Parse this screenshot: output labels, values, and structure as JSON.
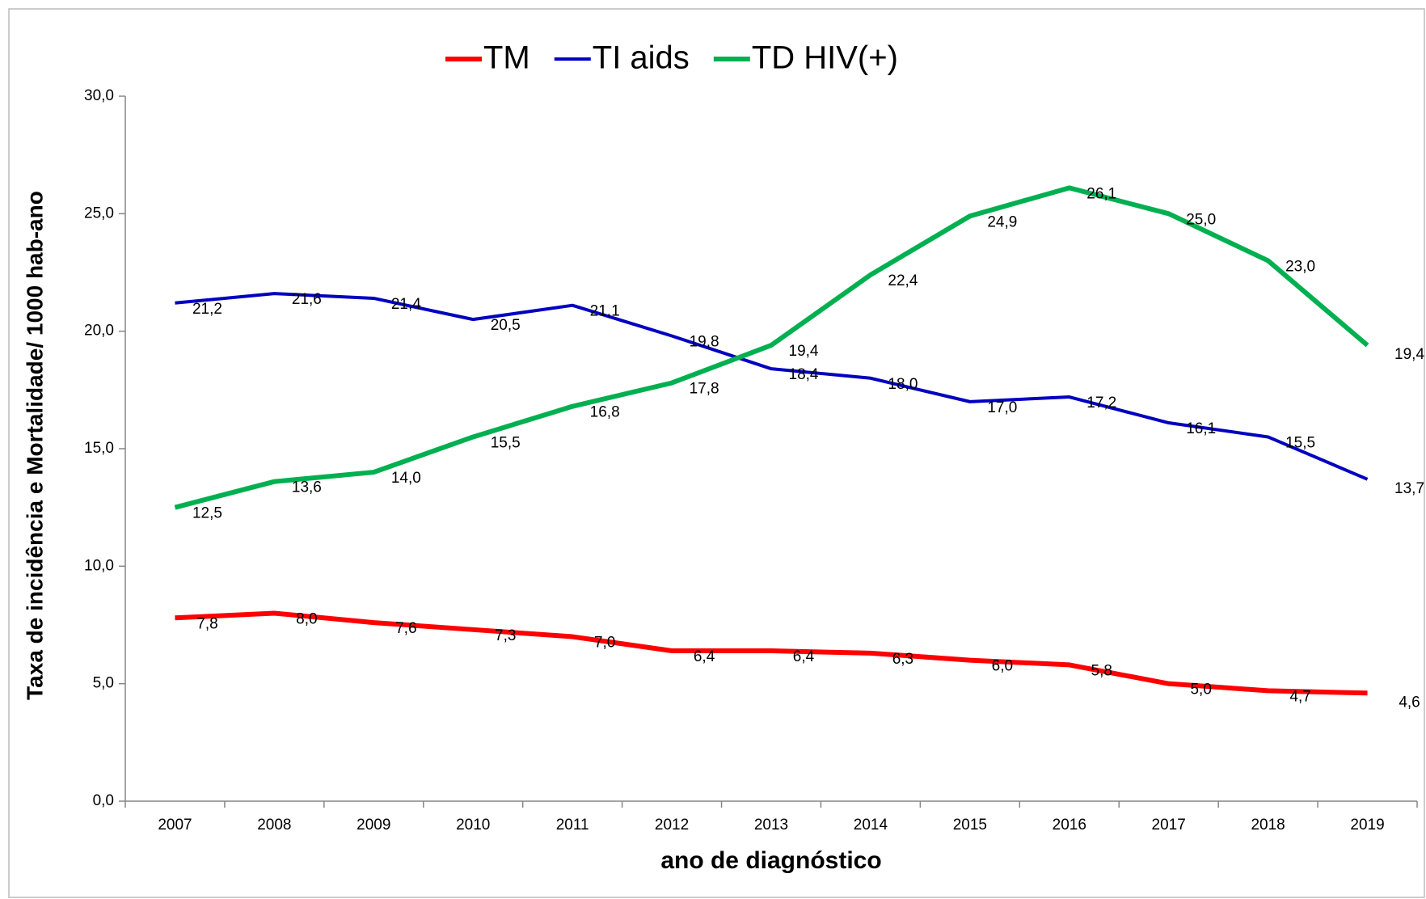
{
  "chart_data": {
    "type": "line",
    "x_label": "ano de diagnóstico",
    "y_label": "Taxa de incidência e Mortalidade/ 1000 hab-ano",
    "categories": [
      "2007",
      "2008",
      "2009",
      "2010",
      "2011",
      "2012",
      "2013",
      "2014",
      "2015",
      "2016",
      "2017",
      "2018",
      "2019"
    ],
    "series": [
      {
        "name": "TM",
        "color": "#ff0000",
        "width": 6,
        "values": [
          7.8,
          8.0,
          7.6,
          7.3,
          7.0,
          6.4,
          6.4,
          6.3,
          6.0,
          5.8,
          5.0,
          4.7,
          4.6
        ],
        "value_labels": [
          "7,8",
          "8,0",
          "7,6",
          "7,3",
          "7,0",
          "6,4",
          "6,4",
          "6,3",
          "6,0",
          "5,8",
          "5,0",
          "4,7",
          "4,6"
        ]
      },
      {
        "name": "TI aids",
        "color": "#0000c0",
        "width": 4,
        "values": [
          21.2,
          21.6,
          21.4,
          20.5,
          21.1,
          19.8,
          18.4,
          18.0,
          17.0,
          17.2,
          16.1,
          15.5,
          13.7
        ],
        "value_labels": [
          "21,2",
          "21,6",
          "21,4",
          "20,5",
          "21,1",
          "19,8",
          "18,4",
          "18,0",
          "17,0",
          "17,2",
          "16,1",
          "15,5",
          "13,7"
        ]
      },
      {
        "name": "TD HIV(+)",
        "color": "#00b050",
        "width": 6,
        "values": [
          12.5,
          13.6,
          14.0,
          15.5,
          16.8,
          17.8,
          19.4,
          22.4,
          24.9,
          26.1,
          25.0,
          23.0,
          19.4
        ],
        "value_labels": [
          "12,5",
          "13,6",
          "14,0",
          "15,5",
          "16,8",
          "17,8",
          "19,4",
          "22,4",
          "24,9",
          "26,1",
          "25,0",
          "23,0",
          "19,4"
        ]
      }
    ],
    "ylim": [
      0,
      30
    ],
    "yticks": [
      {
        "value": 0,
        "label": "0,0"
      },
      {
        "value": 5,
        "label": "5,0"
      },
      {
        "value": 10,
        "label": "10,0"
      },
      {
        "value": 15,
        "label": "15,0"
      },
      {
        "value": 20,
        "label": "20,0"
      },
      {
        "value": 25,
        "label": "25,0"
      },
      {
        "value": 30,
        "label": "30,0"
      }
    ],
    "legend": "top"
  }
}
